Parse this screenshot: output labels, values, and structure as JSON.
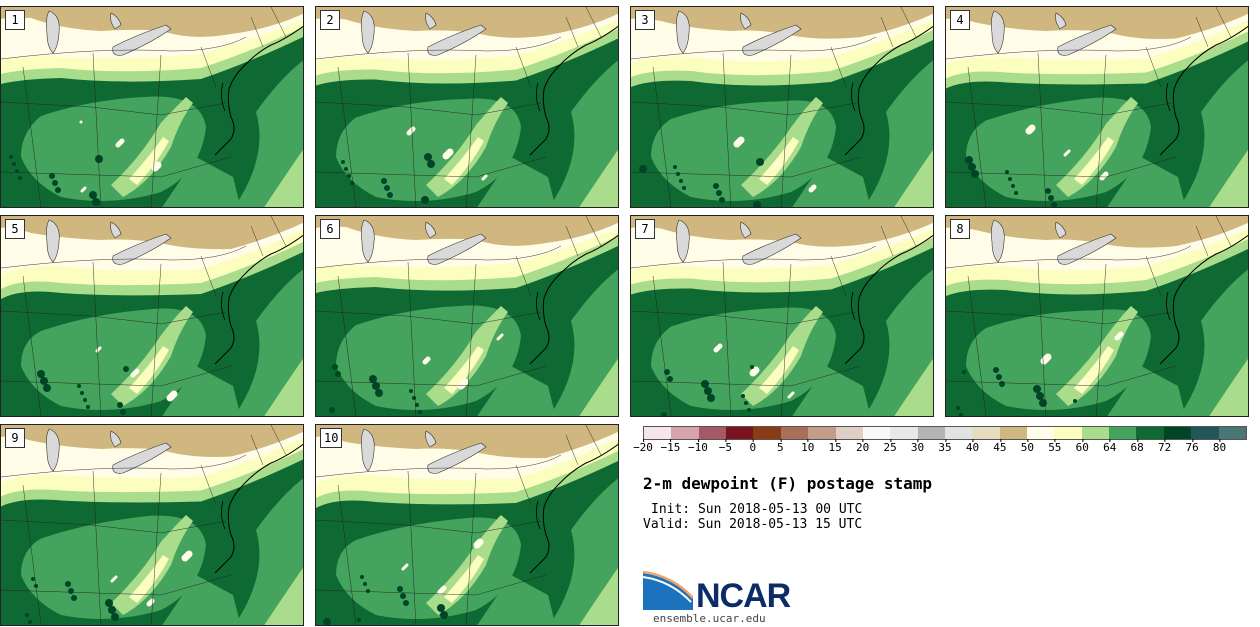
{
  "figure": {
    "title": "2-m dewpoint (F) postage stamp",
    "init": "Init: Sun 2018-05-13 00 UTC",
    "valid": "Valid: Sun 2018-05-13 15 UTC",
    "logo_text": "NCAR",
    "url": "ensemble.ucar.edu"
  },
  "members": [
    "1",
    "2",
    "3",
    "4",
    "5",
    "6",
    "7",
    "8",
    "9",
    "10"
  ],
  "colorbar": {
    "colors": [
      "#f6e6ea",
      "#d5a4ac",
      "#a55866",
      "#7a1220",
      "#8a3c14",
      "#a87058",
      "#c49c8a",
      "#e0cfc6",
      "#f8f8f8",
      "#e8e8e8",
      "#b4b4b4",
      "#e2e2de",
      "#e6dcc0",
      "#cfb77f",
      "#fffde8",
      "#fbfebe",
      "#a9dc8b",
      "#44a45d",
      "#0e6a32",
      "#004526",
      "#22575a",
      "#4b7676"
    ],
    "tick_labels": [
      "−20",
      "−15",
      "−10",
      "−5",
      "0",
      "5",
      "10",
      "15",
      "20",
      "25",
      "30",
      "35",
      "40",
      "45",
      "50",
      "55",
      "60",
      "64",
      "68",
      "72",
      "76",
      "80"
    ]
  },
  "map_colors": {
    "tan": "#cfb77f",
    "cream": "#fffde8",
    "pale_yellow": "#fbfebe",
    "light_green": "#a9dc8b",
    "mid_green": "#44a45d",
    "dark_green": "#0e6a32",
    "very_dark": "#004526",
    "lake": "#d9d9d9"
  }
}
